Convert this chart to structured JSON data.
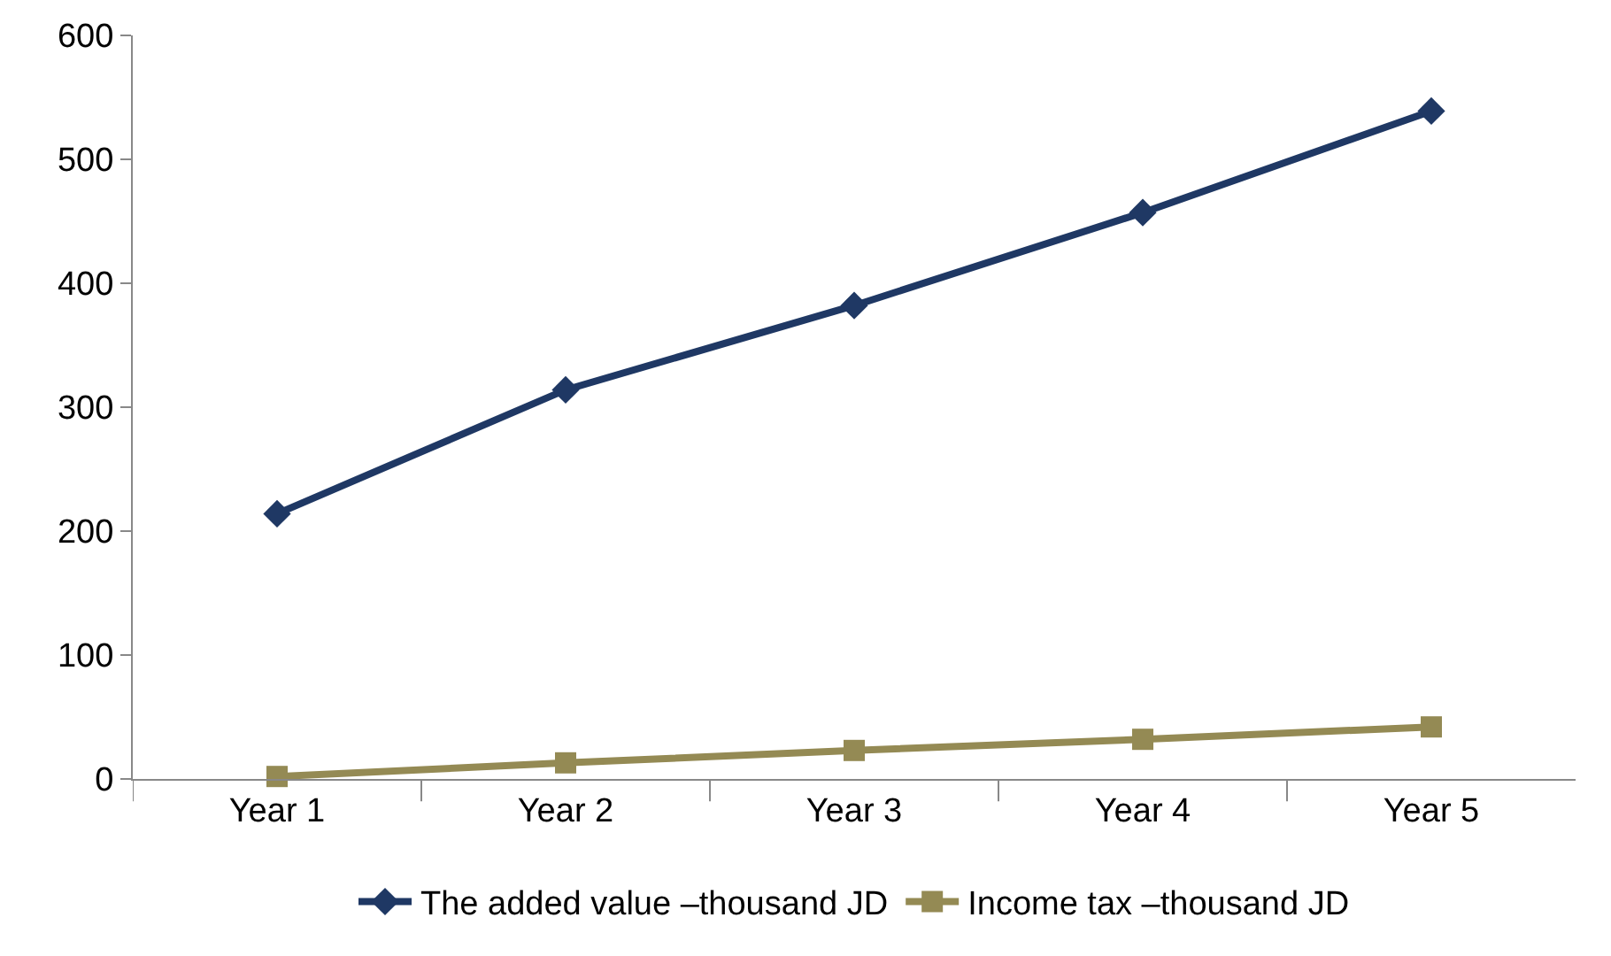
{
  "chart_data": {
    "type": "line",
    "categories": [
      "Year 1",
      "Year 2",
      "Year 3",
      "Year 4",
      "Year 5"
    ],
    "series": [
      {
        "name": "The added value –thousand JD",
        "color": "#1f3864",
        "marker": "diamond",
        "values": [
          214,
          314,
          382,
          457,
          539
        ]
      },
      {
        "name": "Income tax –thousand JD",
        "color": "#948a54",
        "marker": "square",
        "values": [
          2,
          13,
          23,
          32,
          42
        ]
      }
    ],
    "ylim": [
      0,
      600
    ],
    "yticks": [
      0,
      100,
      200,
      300,
      400,
      500,
      600
    ],
    "grid": false,
    "legend": "bottom",
    "line_style": "solid"
  }
}
